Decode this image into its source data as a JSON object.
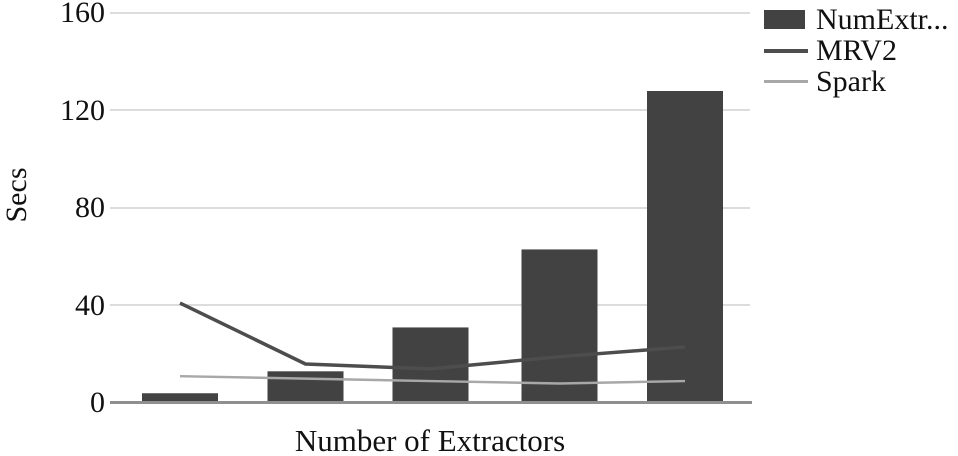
{
  "chart_data": {
    "type": "bar",
    "combo": "bar+line",
    "title": "",
    "xlabel": "Number of Extractors",
    "ylabel": "Secs",
    "ylim": [
      0,
      160
    ],
    "yticks": [
      "160",
      "120",
      "80",
      "40",
      "0"
    ],
    "x_tick_labels_visible": false,
    "grid": true,
    "legend_position": "top-right",
    "series": [
      {
        "name": "NumExtr...",
        "kind": "bar",
        "values": [
          4,
          13,
          31,
          63,
          128
        ],
        "color": "#424242"
      },
      {
        "name": "MRV2",
        "kind": "line",
        "values": [
          41,
          16,
          14,
          19,
          23
        ],
        "color": "#4d4d4d"
      },
      {
        "name": "Spark",
        "kind": "line",
        "values": [
          11,
          10,
          9,
          8,
          9
        ],
        "color": "#a8a8a8"
      }
    ]
  },
  "axes": {
    "y_title": "Secs",
    "x_title": "Number of Extractors",
    "y_ticks": [
      "160",
      "120",
      "80",
      "40",
      "0"
    ]
  },
  "colors": {
    "gridline": "#dcdcdc",
    "axis_line": "#8f8f8f",
    "text": "#111111"
  }
}
